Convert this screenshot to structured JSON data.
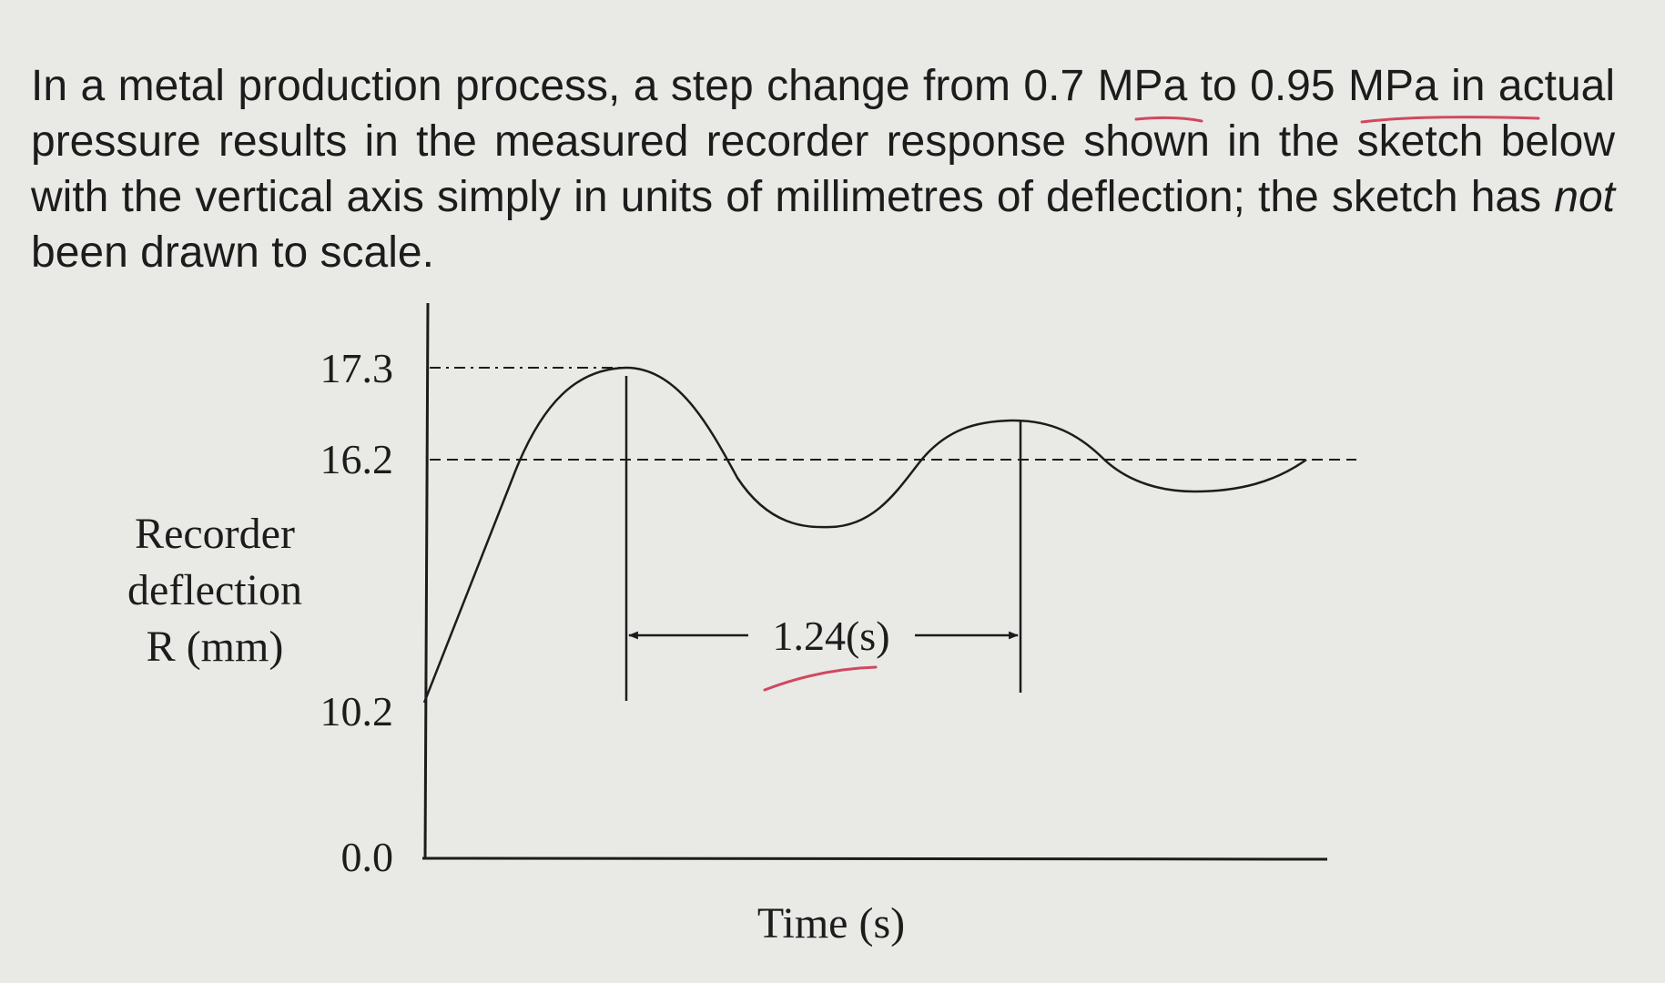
{
  "question": {
    "before_emphasis": "In a metal production process, a step change from 0.7 MPa to 0.95 MPa in actual pressure results in the measured recorder response shown in the sketch below with the vertical axis simply in units of millimetres of deflection; the sketch has ",
    "emphasis": "not",
    "after_emphasis": " been drawn to scale."
  },
  "colors": {
    "ink": "#1c1c1c",
    "pen_annotation": "#d0485f",
    "paper": "#e9e9e6"
  },
  "chart_data": {
    "type": "line",
    "title": "",
    "xlabel": "Time (s)",
    "ylabel_lines": [
      "Recorder",
      "deflection",
      "R (mm)"
    ],
    "ytick_labels": [
      "17.3",
      "16.2",
      "10.2",
      "0.0"
    ],
    "yticks": [
      17.3,
      16.2,
      10.2,
      0.0
    ],
    "xticks": [],
    "scale_note": "not drawn to scale",
    "initial_value": 10.2,
    "final_value": 16.2,
    "peak_value": 17.3,
    "period_label": "1.24(s)",
    "period_seconds": 1.24,
    "reference_lines": [
      {
        "value": 17.3,
        "style": "dash-dot"
      },
      {
        "value": 16.2,
        "style": "dashed"
      }
    ],
    "series": [
      {
        "style": "damped oscillation",
        "points": [
          {
            "t": 0.0,
            "R": 10.2
          },
          {
            "t": 0.52,
            "R": 17.3
          },
          {
            "t": 1.14,
            "R": 15.1
          },
          {
            "t": 1.76,
            "R": 16.9
          },
          {
            "t": 2.38,
            "R": 15.7
          },
          {
            "t": 2.7,
            "R": 16.2
          }
        ]
      }
    ],
    "grid": false,
    "legend": "none"
  }
}
